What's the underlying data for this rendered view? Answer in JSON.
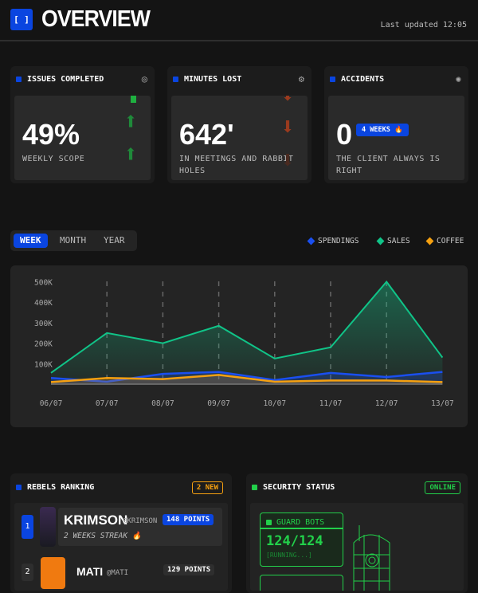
{
  "header": {
    "logo": "[ ]",
    "title": "OVERVIEW",
    "updated": "Last updated 12:05"
  },
  "kpis": [
    {
      "title": "ISSUES COMPLETED",
      "icon": "target-icon",
      "value": "49%",
      "sub": "WEEKLY SCOPE",
      "trend": "up"
    },
    {
      "title": "MINUTES LOST",
      "icon": "gear-icon",
      "value": "642'",
      "sub": "IN MEETINGS AND RABBIT HOLES",
      "trend": "down"
    },
    {
      "title": "ACCIDENTS",
      "icon": "bug-icon",
      "value": "0",
      "badge": "4 WEEKS 🔥",
      "sub": "THE CLIENT ALWAYS IS RIGHT"
    }
  ],
  "tabs": [
    {
      "label": "WEEK",
      "active": true
    },
    {
      "label": "MONTH"
    },
    {
      "label": "YEAR"
    }
  ],
  "colors": {
    "spendings": "#1a4ff0",
    "sales": "#10c488",
    "coffee": "#f5a010",
    "accent": "#0a45e0",
    "green": "#22d04a"
  },
  "chart_data": {
    "type": "area",
    "categories": [
      "06/07",
      "07/07",
      "08/07",
      "09/07",
      "10/07",
      "11/07",
      "12/07",
      "13/07"
    ],
    "yticks": [
      "100K",
      "200K",
      "300K",
      "400K",
      "500K"
    ],
    "ylim": [
      0,
      500000
    ],
    "grid": "vertical dashed",
    "legend": "top-right",
    "series": [
      {
        "name": "SPENDINGS",
        "values": [
          30000,
          12000,
          50000,
          60000,
          20000,
          55000,
          35000,
          60000
        ]
      },
      {
        "name": "SALES",
        "values": [
          55000,
          250000,
          200000,
          285000,
          125000,
          180000,
          500000,
          130000
        ]
      },
      {
        "name": "COFFEE",
        "values": [
          10000,
          30000,
          25000,
          45000,
          12000,
          18000,
          18000,
          10000
        ]
      }
    ]
  },
  "ranking": {
    "title": "REBELS RANKING",
    "badge": "2 NEW",
    "items": [
      {
        "rank": "1",
        "name": "KRIMSON",
        "handle": "@KRIMSON",
        "points": "148 POINTS",
        "streak": "2 WEEKS STREAK 🔥"
      },
      {
        "rank": "2",
        "name": "MATI",
        "handle": "@MATI",
        "points": "129 POINTS"
      }
    ]
  },
  "security": {
    "title": "SECURITY STATUS",
    "badge": "ONLINE",
    "bots_label": "GUARD BOTS",
    "bots_value": "124/124",
    "bots_status": "[RUNNING...]"
  }
}
